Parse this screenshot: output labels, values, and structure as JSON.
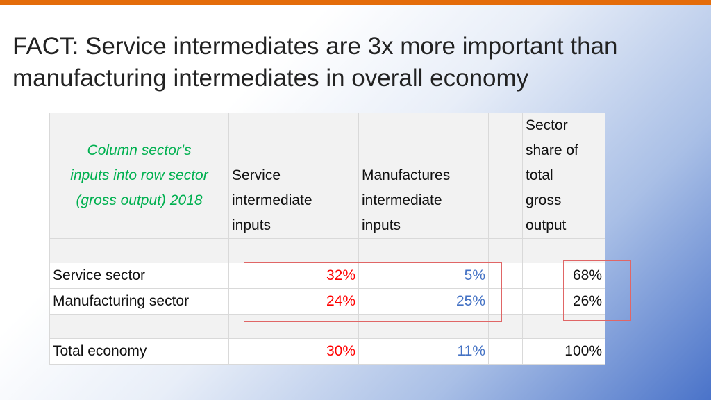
{
  "slide": {
    "title": "FACT: Service intermediates are 3x more important than manufacturing intermediates in overall economy"
  },
  "table": {
    "corner_lines": [
      "Column sector's",
      "inputs into row sector",
      "(gross output) 2018"
    ],
    "headers": {
      "service": [
        "Service",
        "intermediate",
        "inputs"
      ],
      "manufactures": [
        "Manufactures",
        "intermediate",
        "inputs"
      ],
      "share": [
        "Sector",
        "share of",
        "total",
        "gross",
        "output"
      ]
    },
    "rows": [
      {
        "label": "Service sector",
        "service": "32%",
        "manufactures": "5%",
        "share": "68%"
      },
      {
        "label": "Manufacturing sector",
        "service": "24%",
        "manufactures": "25%",
        "share": "26%"
      },
      {
        "label": "Total economy",
        "service": "30%",
        "manufactures": "11%",
        "share": "100%"
      }
    ]
  },
  "colors": {
    "accent_bar": "#e46c0a",
    "corner_text": "#00b050",
    "service_values": "#ff0000",
    "manufactures_values": "#4472c4",
    "highlight_box": "#e06666"
  }
}
